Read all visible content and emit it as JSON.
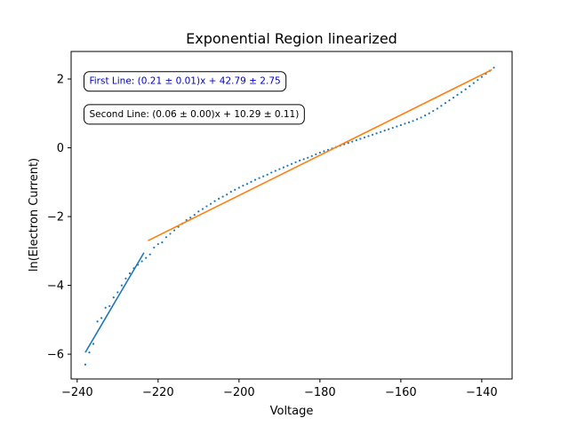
{
  "chart_data": {
    "type": "scatter",
    "title": "Exponential Region linearized",
    "xlabel": "Voltage",
    "ylabel": "ln(Electron Current)",
    "xlim": [
      -241.5,
      -132.5
    ],
    "ylim": [
      -6.72,
      2.8
    ],
    "x_ticks": [
      -240,
      -220,
      -200,
      -180,
      -160,
      -140
    ],
    "y_ticks": [
      -6,
      -4,
      -2,
      0,
      2
    ],
    "x_tick_labels": [
      "−240",
      "−220",
      "−200",
      "−180",
      "−160",
      "−140"
    ],
    "y_tick_labels": [
      "−6",
      "−4",
      "−2",
      "0",
      "2"
    ],
    "grid": false,
    "colors": {
      "points": "#1f77b4",
      "first_line": "#1f77b4",
      "second_line": "#ff7f0e",
      "first_annotation": "#0000cc",
      "second_annotation": "#000000"
    },
    "points": [
      [
        -238.0,
        -6.3
      ],
      [
        -237.0,
        -5.95
      ],
      [
        -236.0,
        -5.7
      ],
      [
        -235.0,
        -5.05
      ],
      [
        -234.0,
        -4.95
      ],
      [
        -233.0,
        -4.65
      ],
      [
        -232.0,
        -4.6
      ],
      [
        -231.0,
        -4.35
      ],
      [
        -230.0,
        -4.2
      ],
      [
        -229.0,
        -4.0
      ],
      [
        -228.0,
        -3.8
      ],
      [
        -227.0,
        -3.65
      ],
      [
        -226.0,
        -3.5
      ],
      [
        -225.0,
        -3.4
      ],
      [
        -224.0,
        -3.3
      ],
      [
        -223.0,
        -3.2
      ],
      [
        -222.0,
        -3.1
      ],
      [
        -221.0,
        -2.9
      ],
      [
        -220.0,
        -2.8
      ],
      [
        -219.0,
        -2.75
      ],
      [
        -218.0,
        -2.6
      ],
      [
        -217.0,
        -2.5
      ],
      [
        -216.0,
        -2.4
      ],
      [
        -215.0,
        -2.3
      ],
      [
        -214.0,
        -2.2
      ],
      [
        -213.0,
        -2.1
      ],
      [
        -212.0,
        -2.03
      ],
      [
        -211.0,
        -1.95
      ],
      [
        -210.0,
        -1.85
      ],
      [
        -209.0,
        -1.78
      ],
      [
        -208.0,
        -1.7
      ],
      [
        -207.0,
        -1.63
      ],
      [
        -206.0,
        -1.55
      ],
      [
        -205.0,
        -1.48
      ],
      [
        -204.0,
        -1.42
      ],
      [
        -203.0,
        -1.36
      ],
      [
        -202.0,
        -1.28
      ],
      [
        -201.0,
        -1.22
      ],
      [
        -200.0,
        -1.16
      ],
      [
        -199.0,
        -1.1
      ],
      [
        -198.0,
        -1.05
      ],
      [
        -197.0,
        -0.99
      ],
      [
        -196.0,
        -0.93
      ],
      [
        -195.0,
        -0.88
      ],
      [
        -194.0,
        -0.83
      ],
      [
        -193.0,
        -0.78
      ],
      [
        -192.0,
        -0.72
      ],
      [
        -191.0,
        -0.67
      ],
      [
        -190.0,
        -0.62
      ],
      [
        -189.0,
        -0.57
      ],
      [
        -188.0,
        -0.52
      ],
      [
        -187.0,
        -0.47
      ],
      [
        -186.0,
        -0.42
      ],
      [
        -185.0,
        -0.37
      ],
      [
        -184.0,
        -0.33
      ],
      [
        -183.0,
        -0.29
      ],
      [
        -182.0,
        -0.24
      ],
      [
        -181.0,
        -0.19
      ],
      [
        -180.0,
        -0.14
      ],
      [
        -179.0,
        -0.1
      ],
      [
        -178.0,
        -0.06
      ],
      [
        -177.0,
        -0.02
      ],
      [
        -176.0,
        0.02
      ],
      [
        -175.0,
        0.06
      ],
      [
        -174.0,
        0.1
      ],
      [
        -173.0,
        0.14
      ],
      [
        -172.0,
        0.18
      ],
      [
        -171.0,
        0.22
      ],
      [
        -170.0,
        0.26
      ],
      [
        -169.0,
        0.3
      ],
      [
        -168.0,
        0.34
      ],
      [
        -167.0,
        0.38
      ],
      [
        -166.0,
        0.42
      ],
      [
        -165.0,
        0.46
      ],
      [
        -164.0,
        0.5
      ],
      [
        -163.0,
        0.54
      ],
      [
        -162.0,
        0.58
      ],
      [
        -161.0,
        0.62
      ],
      [
        -160.0,
        0.66
      ],
      [
        -159.0,
        0.7
      ],
      [
        -158.0,
        0.74
      ],
      [
        -157.0,
        0.78
      ],
      [
        -156.0,
        0.83
      ],
      [
        -155.0,
        0.88
      ],
      [
        -154.0,
        0.94
      ],
      [
        -153.0,
        1.0
      ],
      [
        -152.0,
        1.07
      ],
      [
        -151.0,
        1.14
      ],
      [
        -150.0,
        1.22
      ],
      [
        -149.0,
        1.3
      ],
      [
        -148.0,
        1.38
      ],
      [
        -147.0,
        1.46
      ],
      [
        -146.0,
        1.54
      ],
      [
        -145.0,
        1.62
      ],
      [
        -144.0,
        1.7
      ],
      [
        -143.0,
        1.79
      ],
      [
        -142.0,
        1.88
      ],
      [
        -141.0,
        1.97
      ],
      [
        -140.0,
        2.06
      ],
      [
        -139.0,
        2.15
      ],
      [
        -138.0,
        2.24
      ],
      [
        -137.0,
        2.33
      ]
    ],
    "lines": [
      {
        "x": [
          -238.0,
          -223.5
        ],
        "y": [
          -5.95,
          -3.05
        ]
      },
      {
        "x": [
          -222.5,
          -137.5
        ],
        "y": [
          -2.7,
          2.27
        ]
      }
    ],
    "annotations": [
      {
        "text": "First Line: (0.21 ± 0.01)x + 42.79 ± 2.75",
        "x": -237.0,
        "y": 1.93
      },
      {
        "text": "Second Line: (0.06 ± 0.00)x + 10.29 ± 0.11)",
        "x": -237.0,
        "y": 0.97
      }
    ]
  }
}
